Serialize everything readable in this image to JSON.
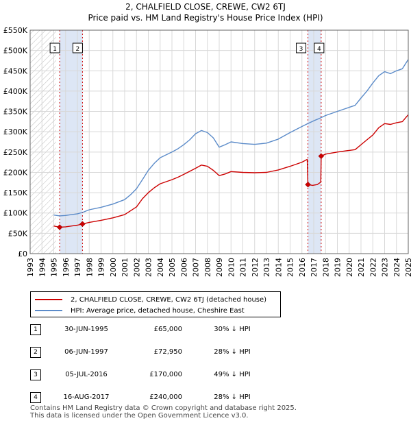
{
  "chart_data": {
    "type": "line",
    "title": "2, CHALFIELD CLOSE, CREWE, CW2 6TJ",
    "subtitle": "Price paid vs. HM Land Registry's House Price Index (HPI)",
    "xlabel": "",
    "ylabel": "",
    "xlim": [
      1993,
      2025
    ],
    "ylim": [
      0,
      550000
    ],
    "x_ticks": [
      "1993",
      "1994",
      "1995",
      "1996",
      "1997",
      "1998",
      "1999",
      "2000",
      "2001",
      "2002",
      "2003",
      "2004",
      "2005",
      "2006",
      "2007",
      "2008",
      "2009",
      "2010",
      "2011",
      "2012",
      "2013",
      "2014",
      "2015",
      "2016",
      "2017",
      "2018",
      "2019",
      "2020",
      "2021",
      "2022",
      "2023",
      "2024",
      "2025"
    ],
    "y_ticks": [
      {
        "value": 0,
        "label": "£0"
      },
      {
        "value": 50000,
        "label": "£50K"
      },
      {
        "value": 100000,
        "label": "£100K"
      },
      {
        "value": 150000,
        "label": "£150K"
      },
      {
        "value": 200000,
        "label": "£200K"
      },
      {
        "value": 250000,
        "label": "£250K"
      },
      {
        "value": 300000,
        "label": "£300K"
      },
      {
        "value": 350000,
        "label": "£350K"
      },
      {
        "value": 400000,
        "label": "£400K"
      },
      {
        "value": 450000,
        "label": "£450K"
      },
      {
        "value": 500000,
        "label": "£500K"
      },
      {
        "value": 550000,
        "label": "£550K"
      }
    ],
    "hatched_region": [
      1993,
      1995.2
    ],
    "sale_bands": [
      [
        1995.5,
        1997.43
      ],
      [
        2016.5,
        2017.63
      ]
    ],
    "grid": true,
    "series": [
      {
        "name": "2, CHALFIELD CLOSE, CREWE, CW2 6TJ (detached house)",
        "color": "#cc0000",
        "points": [
          [
            1995.0,
            68000
          ],
          [
            1995.5,
            65000
          ],
          [
            1996.0,
            66000
          ],
          [
            1996.5,
            68000
          ],
          [
            1997.0,
            70000
          ],
          [
            1997.43,
            72950
          ],
          [
            1998.0,
            77000
          ],
          [
            1999.0,
            82000
          ],
          [
            2000.0,
            88000
          ],
          [
            2001.0,
            96000
          ],
          [
            2002.0,
            115000
          ],
          [
            2002.5,
            135000
          ],
          [
            2003.0,
            150000
          ],
          [
            2003.5,
            162000
          ],
          [
            2004.0,
            172000
          ],
          [
            2005.0,
            182000
          ],
          [
            2005.5,
            188000
          ],
          [
            2006.0,
            195000
          ],
          [
            2007.0,
            210000
          ],
          [
            2007.5,
            218000
          ],
          [
            2008.0,
            215000
          ],
          [
            2008.5,
            205000
          ],
          [
            2009.0,
            192000
          ],
          [
            2009.5,
            196000
          ],
          [
            2010.0,
            202000
          ],
          [
            2011.0,
            200000
          ],
          [
            2012.0,
            199000
          ],
          [
            2013.0,
            200000
          ],
          [
            2014.0,
            206000
          ],
          [
            2015.0,
            215000
          ],
          [
            2016.0,
            225000
          ],
          [
            2016.45,
            232000
          ],
          [
            2016.51,
            170000
          ],
          [
            2016.9,
            168000
          ],
          [
            2017.3,
            170000
          ],
          [
            2017.6,
            176000
          ],
          [
            2017.63,
            240000
          ],
          [
            2018.0,
            245000
          ],
          [
            2019.0,
            250000
          ],
          [
            2020.0,
            254000
          ],
          [
            2020.5,
            256000
          ],
          [
            2021.0,
            268000
          ],
          [
            2021.5,
            280000
          ],
          [
            2022.0,
            292000
          ],
          [
            2022.5,
            310000
          ],
          [
            2023.0,
            320000
          ],
          [
            2023.5,
            318000
          ],
          [
            2024.0,
            322000
          ],
          [
            2024.5,
            325000
          ],
          [
            2025.0,
            342000
          ]
        ]
      },
      {
        "name": "HPI: Average price, detached house, Cheshire East",
        "color": "#5b8bc9",
        "points": [
          [
            1995.0,
            95000
          ],
          [
            1995.5,
            93000
          ],
          [
            1996.0,
            94000
          ],
          [
            1996.5,
            96000
          ],
          [
            1997.0,
            98000
          ],
          [
            1997.5,
            102000
          ],
          [
            1998.0,
            108000
          ],
          [
            1999.0,
            114000
          ],
          [
            2000.0,
            122000
          ],
          [
            2001.0,
            133000
          ],
          [
            2001.5,
            145000
          ],
          [
            2002.0,
            160000
          ],
          [
            2002.5,
            182000
          ],
          [
            2003.0,
            205000
          ],
          [
            2003.5,
            222000
          ],
          [
            2004.0,
            236000
          ],
          [
            2005.0,
            250000
          ],
          [
            2005.5,
            258000
          ],
          [
            2006.0,
            268000
          ],
          [
            2006.5,
            280000
          ],
          [
            2007.0,
            295000
          ],
          [
            2007.5,
            303000
          ],
          [
            2008.0,
            298000
          ],
          [
            2008.5,
            285000
          ],
          [
            2009.0,
            262000
          ],
          [
            2009.5,
            268000
          ],
          [
            2010.0,
            275000
          ],
          [
            2011.0,
            271000
          ],
          [
            2012.0,
            269000
          ],
          [
            2013.0,
            272000
          ],
          [
            2014.0,
            282000
          ],
          [
            2015.0,
            298000
          ],
          [
            2016.0,
            313000
          ],
          [
            2016.5,
            320000
          ],
          [
            2017.0,
            327000
          ],
          [
            2017.5,
            333000
          ],
          [
            2018.0,
            340000
          ],
          [
            2019.0,
            350000
          ],
          [
            2020.0,
            360000
          ],
          [
            2020.5,
            365000
          ],
          [
            2021.0,
            383000
          ],
          [
            2021.5,
            400000
          ],
          [
            2022.0,
            420000
          ],
          [
            2022.5,
            438000
          ],
          [
            2023.0,
            448000
          ],
          [
            2023.5,
            443000
          ],
          [
            2024.0,
            450000
          ],
          [
            2024.5,
            455000
          ],
          [
            2025.0,
            478000
          ]
        ]
      }
    ],
    "sales": [
      {
        "id": "1",
        "x": 1995.5,
        "price": 65000
      },
      {
        "id": "2",
        "x": 1997.43,
        "price": 72950
      },
      {
        "id": "3",
        "x": 2016.51,
        "price": 170000
      },
      {
        "id": "4",
        "x": 2017.63,
        "price": 240000
      }
    ]
  },
  "legend": {
    "property_label": "2, CHALFIELD CLOSE, CREWE, CW2 6TJ (detached house)",
    "hpi_label": "HPI: Average price, detached house, Cheshire East"
  },
  "sales_table": [
    {
      "num": "1",
      "date": "30-JUN-1995",
      "price": "£65,000",
      "hpi": "30% ↓ HPI"
    },
    {
      "num": "2",
      "date": "06-JUN-1997",
      "price": "£72,950",
      "hpi": "28% ↓ HPI"
    },
    {
      "num": "3",
      "date": "05-JUL-2016",
      "price": "£170,000",
      "hpi": "49% ↓ HPI"
    },
    {
      "num": "4",
      "date": "16-AUG-2017",
      "price": "£240,000",
      "hpi": "28% ↓ HPI"
    }
  ],
  "footer": {
    "line1": "Contains HM Land Registry data © Crown copyright and database right 2025.",
    "line2": "This data is licensed under the Open Government Licence v3.0."
  },
  "colors": {
    "property": "#cc0000",
    "hpi": "#5b8bc9",
    "band": "#dde6f5",
    "grid": "#d8d8d8"
  }
}
